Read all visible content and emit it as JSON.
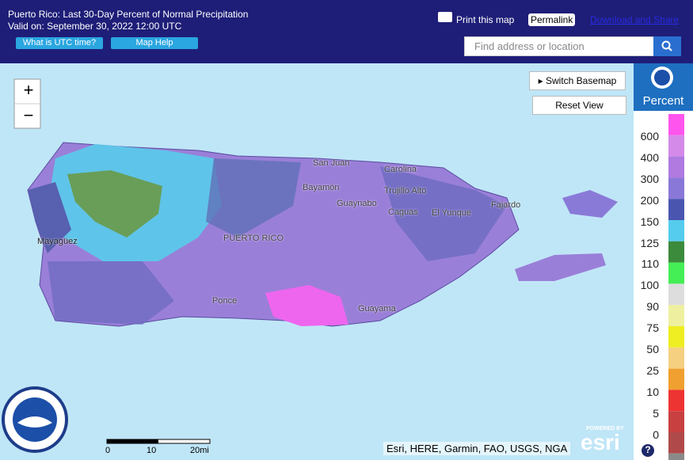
{
  "header": {
    "title": "Puerto Rico: Last 30-Day Percent of Normal Precipitation",
    "valid": "Valid on: September 30, 2022 12:00 UTC",
    "buttons": [
      "What is UTC time?",
      "Map Help"
    ],
    "links": [
      "Print this map",
      "Permalink",
      "Download and Share"
    ]
  },
  "search": {
    "placeholder": "Find address or location"
  },
  "map": {
    "controls": [
      "+",
      "−",
      "Switch Basemap",
      "Reset View"
    ],
    "labels": [
      "San Juan",
      "Carolina",
      "Bayamón",
      "Guaynabo",
      "Trujillo Alto",
      "Caguas",
      "El Yunque",
      "Fajardo",
      "Mayagüez",
      "PUERTO RICO",
      "Ponce",
      "Guayama"
    ],
    "scale": [
      "0",
      "10",
      "20mi"
    ],
    "attribution": "Esri, HERE, Garmin, FAO, USGS, NGA",
    "powered": [
      "POWERED BY",
      "esri"
    ],
    "help": "?"
  },
  "legend": {
    "title": "Percent",
    "labels": [
      "600",
      "400",
      "300",
      "200",
      "150",
      "125",
      "110",
      "100",
      "90",
      "75",
      "50",
      "25",
      "10",
      "5",
      "0"
    ]
  }
}
